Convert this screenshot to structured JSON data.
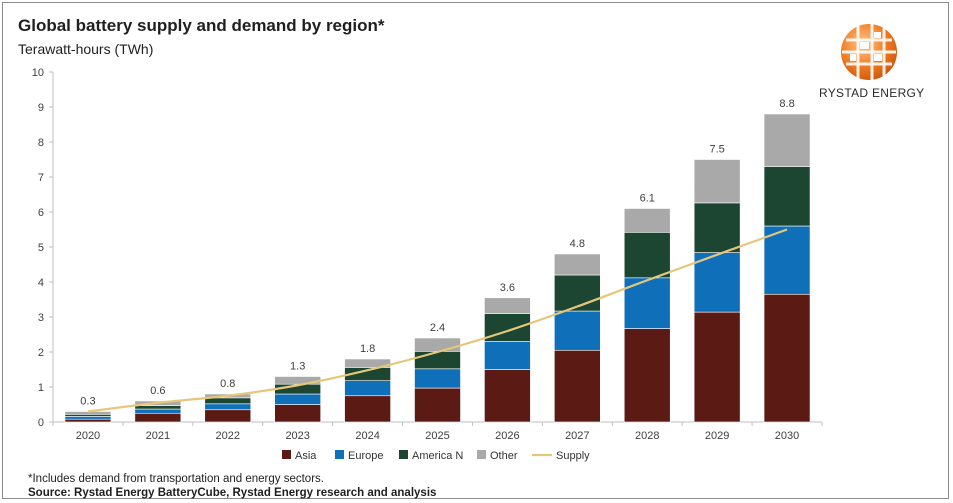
{
  "header": {
    "title": "Global battery supply and demand by region*",
    "subtitle": "Terawatt-hours (TWh)"
  },
  "logo": {
    "name": "RYSTAD ENERGY"
  },
  "footer": {
    "note": "*Includes demand from transportation and energy sectors.",
    "source": "Source: Rystad Energy BatteryCube, Rystad Energy research and analysis"
  },
  "colors": {
    "asia": "#5b1a14",
    "europe": "#0f6fb8",
    "america": "#1d4632",
    "other": "#a9a9a9",
    "supply": "#e6c77a"
  },
  "chart_data": {
    "type": "bar",
    "stacked": true,
    "title": "Global battery supply and demand by region*",
    "ylabel": "Terawatt-hours (TWh)",
    "ylim": [
      0,
      10
    ],
    "yticks": [
      0,
      1,
      2,
      3,
      4,
      5,
      6,
      7,
      8,
      9,
      10
    ],
    "categories": [
      "2020",
      "2021",
      "2022",
      "2023",
      "2024",
      "2025",
      "2026",
      "2027",
      "2028",
      "2029",
      "2030"
    ],
    "series": [
      {
        "name": "Asia",
        "color": "#5b1a14",
        "values": [
          0.08,
          0.25,
          0.35,
          0.5,
          0.75,
          0.97,
          1.5,
          2.05,
          2.67,
          3.14,
          3.65
        ]
      },
      {
        "name": "Europe",
        "color": "#0f6fb8",
        "values": [
          0.08,
          0.12,
          0.17,
          0.3,
          0.43,
          0.55,
          0.8,
          1.12,
          1.45,
          1.7,
          1.95
        ]
      },
      {
        "name": "America N",
        "color": "#1d4632",
        "values": [
          0.06,
          0.1,
          0.17,
          0.28,
          0.38,
          0.5,
          0.8,
          1.03,
          1.3,
          1.42,
          1.7
        ]
      },
      {
        "name": "Other",
        "color": "#a9a9a9",
        "values": [
          0.08,
          0.13,
          0.11,
          0.22,
          0.24,
          0.38,
          0.45,
          0.6,
          0.68,
          1.24,
          1.5
        ]
      }
    ],
    "totals_labels": [
      "0.3",
      "0.6",
      "0.8",
      "1.3",
      "1.8",
      "2.4",
      "3.6",
      "4.8",
      "6.1",
      "7.5",
      "8.8"
    ],
    "supply": {
      "name": "Supply",
      "color": "#e6c77a",
      "values": [
        0.3,
        0.55,
        0.75,
        1.05,
        1.48,
        2.0,
        2.6,
        3.3,
        4.05,
        4.78,
        5.5
      ]
    },
    "legend": [
      "Asia",
      "Europe",
      "America N",
      "Other",
      "Supply"
    ],
    "legend_position": "bottom",
    "grid": false
  }
}
